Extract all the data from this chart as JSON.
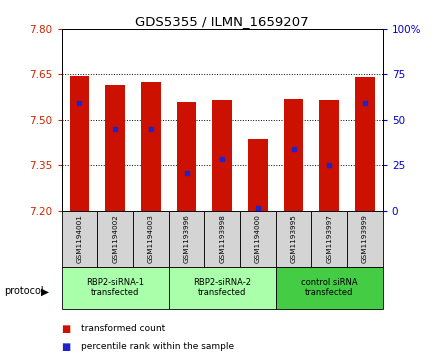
{
  "title": "GDS5355 / ILMN_1659207",
  "samples": [
    "GSM1194001",
    "GSM1194002",
    "GSM1194003",
    "GSM1193996",
    "GSM1193998",
    "GSM1194000",
    "GSM1193995",
    "GSM1193997",
    "GSM1193999"
  ],
  "bar_tops": [
    7.645,
    7.615,
    7.625,
    7.56,
    7.565,
    7.435,
    7.57,
    7.565,
    7.64
  ],
  "bar_bottoms": [
    7.2,
    7.2,
    7.2,
    7.2,
    7.2,
    7.2,
    7.2,
    7.2,
    7.2
  ],
  "blue_markers": [
    7.555,
    7.47,
    7.47,
    7.325,
    7.37,
    7.21,
    7.405,
    7.35,
    7.555
  ],
  "ylim_left": [
    7.2,
    7.8
  ],
  "ylim_right": [
    0,
    100
  ],
  "yticks_left": [
    7.2,
    7.35,
    7.5,
    7.65,
    7.8
  ],
  "yticks_right": [
    0,
    25,
    50,
    75,
    100
  ],
  "ytick_labels_right": [
    "0",
    "25",
    "50",
    "75",
    "100%"
  ],
  "groups": [
    {
      "label": "RBP2-siRNA-1\ntransfected",
      "indices": [
        0,
        1,
        2
      ],
      "color": "#aaffaa"
    },
    {
      "label": "RBP2-siRNA-2\ntransfected",
      "indices": [
        3,
        4,
        5
      ],
      "color": "#aaffaa"
    },
    {
      "label": "control siRNA\ntransfected",
      "indices": [
        6,
        7,
        8
      ],
      "color": "#44cc44"
    }
  ],
  "bar_color": "#cc1100",
  "blue_color": "#2222cc",
  "bar_width": 0.55,
  "left_tick_color": "#cc2200",
  "right_tick_color": "#0000cc",
  "legend_items": [
    {
      "color": "#cc1100",
      "label": "transformed count"
    },
    {
      "color": "#2222cc",
      "label": "percentile rank within the sample"
    }
  ]
}
